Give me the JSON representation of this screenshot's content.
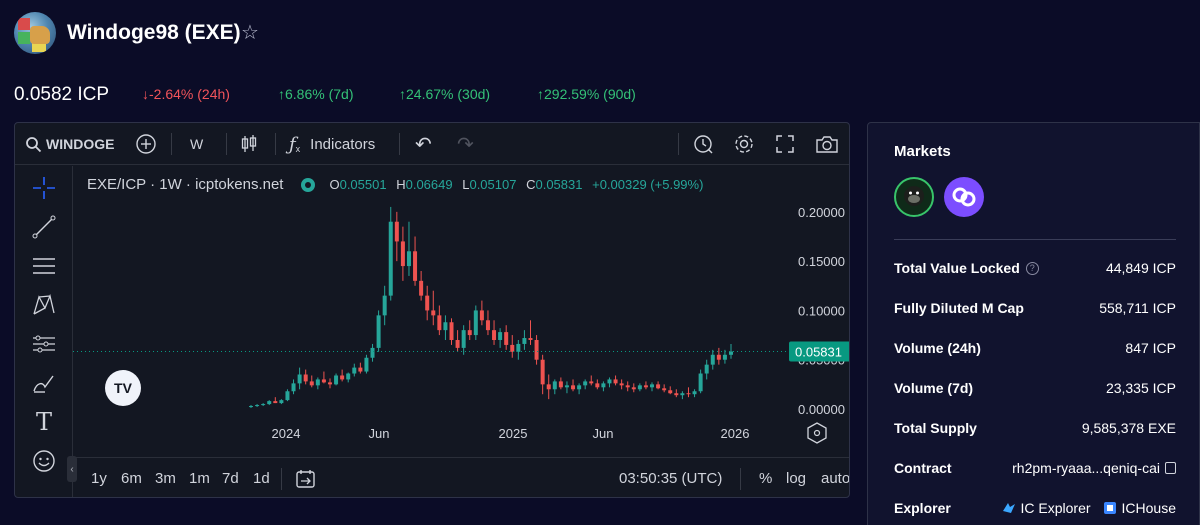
{
  "header": {
    "token_title": "Windoge98 (EXE)",
    "price": "0.0582 ICP",
    "changes": [
      {
        "dir": "down",
        "text": "-2.64% (24h)"
      },
      {
        "dir": "up",
        "text": "6.86% (7d)"
      },
      {
        "dir": "up",
        "text": "24.67% (30d)"
      },
      {
        "dir": "up",
        "text": "292.59% (90d)"
      }
    ]
  },
  "toolbar": {
    "symbol": "WINDOGE",
    "interval": "W",
    "indicators_label": "Indicators"
  },
  "chart": {
    "legend_title": "EXE/ICP · 1W · icptokens.net",
    "ohlc": {
      "o_label": "O",
      "o": "0.05501",
      "h_label": "H",
      "h": "0.06649",
      "l_label": "L",
      "l": "0.05107",
      "c_label": "C",
      "c": "0.05831",
      "change": "+0.00329 (+5.99%)"
    },
    "y_ticks": [
      "0.20000",
      "0.15000",
      "0.10000",
      "0.05000",
      "0.00000"
    ],
    "x_ticks": [
      "2024",
      "Jun",
      "2025",
      "Jun",
      "2026"
    ],
    "last_price_label": "0.05831",
    "logo_text": "TV",
    "colors": {
      "up": "#26a69a",
      "down": "#ef5350",
      "last": "#089981"
    }
  },
  "bottombar": {
    "ranges": [
      "1y",
      "6m",
      "3m",
      "1m",
      "7d",
      "1d"
    ],
    "time": "03:50:35 (UTC)",
    "options": [
      "%",
      "log",
      "auto"
    ]
  },
  "markets": {
    "title": "Markets",
    "stats": [
      {
        "label": "Total Value Locked",
        "value": "44,849 ICP"
      },
      {
        "label": "Fully Diluted M Cap",
        "value": "558,711 ICP"
      },
      {
        "label": "Volume (24h)",
        "value": "847 ICP"
      },
      {
        "label": "Volume (7d)",
        "value": "23,335 ICP"
      },
      {
        "label": "Total Supply",
        "value": "9,585,378 EXE"
      },
      {
        "label": "Contract",
        "value": "rh2pm-ryaaa...qeniq-cai"
      },
      {
        "label": "Explorer",
        "value": ""
      }
    ],
    "explorers": [
      "IC Explorer",
      "ICHouse"
    ]
  },
  "chart_data": {
    "type": "candlestick",
    "title": "EXE/ICP · 1W · icptokens.net",
    "ylim": [
      0,
      0.21
    ],
    "x_ticks": [
      "2024",
      "Jun",
      "2025",
      "Jun",
      "2026"
    ],
    "last": 0.05831,
    "candles": [
      {
        "o": 0.002,
        "h": 0.004,
        "l": 0.001,
        "c": 0.003
      },
      {
        "o": 0.003,
        "h": 0.005,
        "l": 0.002,
        "c": 0.004
      },
      {
        "o": 0.004,
        "h": 0.006,
        "l": 0.003,
        "c": 0.005
      },
      {
        "o": 0.005,
        "h": 0.009,
        "l": 0.004,
        "c": 0.008
      },
      {
        "o": 0.008,
        "h": 0.012,
        "l": 0.006,
        "c": 0.006
      },
      {
        "o": 0.006,
        "h": 0.01,
        "l": 0.005,
        "c": 0.009
      },
      {
        "o": 0.009,
        "h": 0.02,
        "l": 0.008,
        "c": 0.018
      },
      {
        "o": 0.018,
        "h": 0.03,
        "l": 0.015,
        "c": 0.026
      },
      {
        "o": 0.026,
        "h": 0.042,
        "l": 0.02,
        "c": 0.035
      },
      {
        "o": 0.035,
        "h": 0.04,
        "l": 0.025,
        "c": 0.028
      },
      {
        "o": 0.028,
        "h": 0.034,
        "l": 0.022,
        "c": 0.024
      },
      {
        "o": 0.024,
        "h": 0.032,
        "l": 0.02,
        "c": 0.03
      },
      {
        "o": 0.03,
        "h": 0.038,
        "l": 0.026,
        "c": 0.027
      },
      {
        "o": 0.027,
        "h": 0.031,
        "l": 0.021,
        "c": 0.025
      },
      {
        "o": 0.025,
        "h": 0.036,
        "l": 0.024,
        "c": 0.034
      },
      {
        "o": 0.034,
        "h": 0.04,
        "l": 0.028,
        "c": 0.03
      },
      {
        "o": 0.03,
        "h": 0.037,
        "l": 0.027,
        "c": 0.036
      },
      {
        "o": 0.036,
        "h": 0.046,
        "l": 0.033,
        "c": 0.042
      },
      {
        "o": 0.042,
        "h": 0.047,
        "l": 0.036,
        "c": 0.038
      },
      {
        "o": 0.038,
        "h": 0.055,
        "l": 0.036,
        "c": 0.052
      },
      {
        "o": 0.052,
        "h": 0.066,
        "l": 0.048,
        "c": 0.062
      },
      {
        "o": 0.062,
        "h": 0.1,
        "l": 0.058,
        "c": 0.095
      },
      {
        "o": 0.095,
        "h": 0.125,
        "l": 0.085,
        "c": 0.115
      },
      {
        "o": 0.115,
        "h": 0.205,
        "l": 0.11,
        "c": 0.19
      },
      {
        "o": 0.19,
        "h": 0.2,
        "l": 0.15,
        "c": 0.17
      },
      {
        "o": 0.17,
        "h": 0.185,
        "l": 0.13,
        "c": 0.145
      },
      {
        "o": 0.145,
        "h": 0.19,
        "l": 0.135,
        "c": 0.16
      },
      {
        "o": 0.16,
        "h": 0.175,
        "l": 0.125,
        "c": 0.13
      },
      {
        "o": 0.13,
        "h": 0.14,
        "l": 0.11,
        "c": 0.115
      },
      {
        "o": 0.115,
        "h": 0.125,
        "l": 0.09,
        "c": 0.1
      },
      {
        "o": 0.1,
        "h": 0.12,
        "l": 0.085,
        "c": 0.095
      },
      {
        "o": 0.095,
        "h": 0.105,
        "l": 0.075,
        "c": 0.08
      },
      {
        "o": 0.08,
        "h": 0.095,
        "l": 0.07,
        "c": 0.088
      },
      {
        "o": 0.088,
        "h": 0.092,
        "l": 0.065,
        "c": 0.07
      },
      {
        "o": 0.07,
        "h": 0.08,
        "l": 0.058,
        "c": 0.062
      },
      {
        "o": 0.062,
        "h": 0.085,
        "l": 0.055,
        "c": 0.08
      },
      {
        "o": 0.08,
        "h": 0.09,
        "l": 0.07,
        "c": 0.075
      },
      {
        "o": 0.075,
        "h": 0.105,
        "l": 0.07,
        "c": 0.1
      },
      {
        "o": 0.1,
        "h": 0.11,
        "l": 0.085,
        "c": 0.09
      },
      {
        "o": 0.09,
        "h": 0.1,
        "l": 0.075,
        "c": 0.08
      },
      {
        "o": 0.08,
        "h": 0.09,
        "l": 0.065,
        "c": 0.07
      },
      {
        "o": 0.07,
        "h": 0.082,
        "l": 0.062,
        "c": 0.078
      },
      {
        "o": 0.078,
        "h": 0.085,
        "l": 0.06,
        "c": 0.065
      },
      {
        "o": 0.065,
        "h": 0.075,
        "l": 0.052,
        "c": 0.058
      },
      {
        "o": 0.058,
        "h": 0.07,
        "l": 0.05,
        "c": 0.066
      },
      {
        "o": 0.066,
        "h": 0.08,
        "l": 0.06,
        "c": 0.072
      },
      {
        "o": 0.072,
        "h": 0.09,
        "l": 0.065,
        "c": 0.07
      },
      {
        "o": 0.07,
        "h": 0.075,
        "l": 0.045,
        "c": 0.05
      },
      {
        "o": 0.05,
        "h": 0.055,
        "l": 0.015,
        "c": 0.025
      },
      {
        "o": 0.025,
        "h": 0.035,
        "l": 0.01,
        "c": 0.02
      },
      {
        "o": 0.02,
        "h": 0.03,
        "l": 0.015,
        "c": 0.028
      },
      {
        "o": 0.028,
        "h": 0.032,
        "l": 0.02,
        "c": 0.022
      },
      {
        "o": 0.022,
        "h": 0.028,
        "l": 0.016,
        "c": 0.024
      },
      {
        "o": 0.024,
        "h": 0.03,
        "l": 0.018,
        "c": 0.02
      },
      {
        "o": 0.02,
        "h": 0.026,
        "l": 0.015,
        "c": 0.024
      },
      {
        "o": 0.024,
        "h": 0.03,
        "l": 0.02,
        "c": 0.028
      },
      {
        "o": 0.028,
        "h": 0.034,
        "l": 0.024,
        "c": 0.026
      },
      {
        "o": 0.026,
        "h": 0.03,
        "l": 0.02,
        "c": 0.022
      },
      {
        "o": 0.022,
        "h": 0.028,
        "l": 0.018,
        "c": 0.026
      },
      {
        "o": 0.026,
        "h": 0.032,
        "l": 0.022,
        "c": 0.03
      },
      {
        "o": 0.03,
        "h": 0.034,
        "l": 0.024,
        "c": 0.026
      },
      {
        "o": 0.026,
        "h": 0.03,
        "l": 0.02,
        "c": 0.024
      },
      {
        "o": 0.024,
        "h": 0.028,
        "l": 0.018,
        "c": 0.022
      },
      {
        "o": 0.022,
        "h": 0.026,
        "l": 0.017,
        "c": 0.02
      },
      {
        "o": 0.02,
        "h": 0.026,
        "l": 0.018,
        "c": 0.024
      },
      {
        "o": 0.024,
        "h": 0.028,
        "l": 0.02,
        "c": 0.022
      },
      {
        "o": 0.022,
        "h": 0.027,
        "l": 0.018,
        "c": 0.025
      },
      {
        "o": 0.025,
        "h": 0.028,
        "l": 0.02,
        "c": 0.021
      },
      {
        "o": 0.021,
        "h": 0.025,
        "l": 0.017,
        "c": 0.019
      },
      {
        "o": 0.019,
        "h": 0.023,
        "l": 0.015,
        "c": 0.016
      },
      {
        "o": 0.016,
        "h": 0.02,
        "l": 0.012,
        "c": 0.014
      },
      {
        "o": 0.014,
        "h": 0.018,
        "l": 0.01,
        "c": 0.016
      },
      {
        "o": 0.016,
        "h": 0.022,
        "l": 0.012,
        "c": 0.015
      },
      {
        "o": 0.015,
        "h": 0.02,
        "l": 0.012,
        "c": 0.018
      },
      {
        "o": 0.018,
        "h": 0.04,
        "l": 0.016,
        "c": 0.036
      },
      {
        "o": 0.036,
        "h": 0.05,
        "l": 0.03,
        "c": 0.045
      },
      {
        "o": 0.045,
        "h": 0.06,
        "l": 0.04,
        "c": 0.055
      },
      {
        "o": 0.055,
        "h": 0.062,
        "l": 0.045,
        "c": 0.05
      },
      {
        "o": 0.05,
        "h": 0.06,
        "l": 0.046,
        "c": 0.055
      },
      {
        "o": 0.055,
        "h": 0.066,
        "l": 0.051,
        "c": 0.0583
      }
    ]
  }
}
